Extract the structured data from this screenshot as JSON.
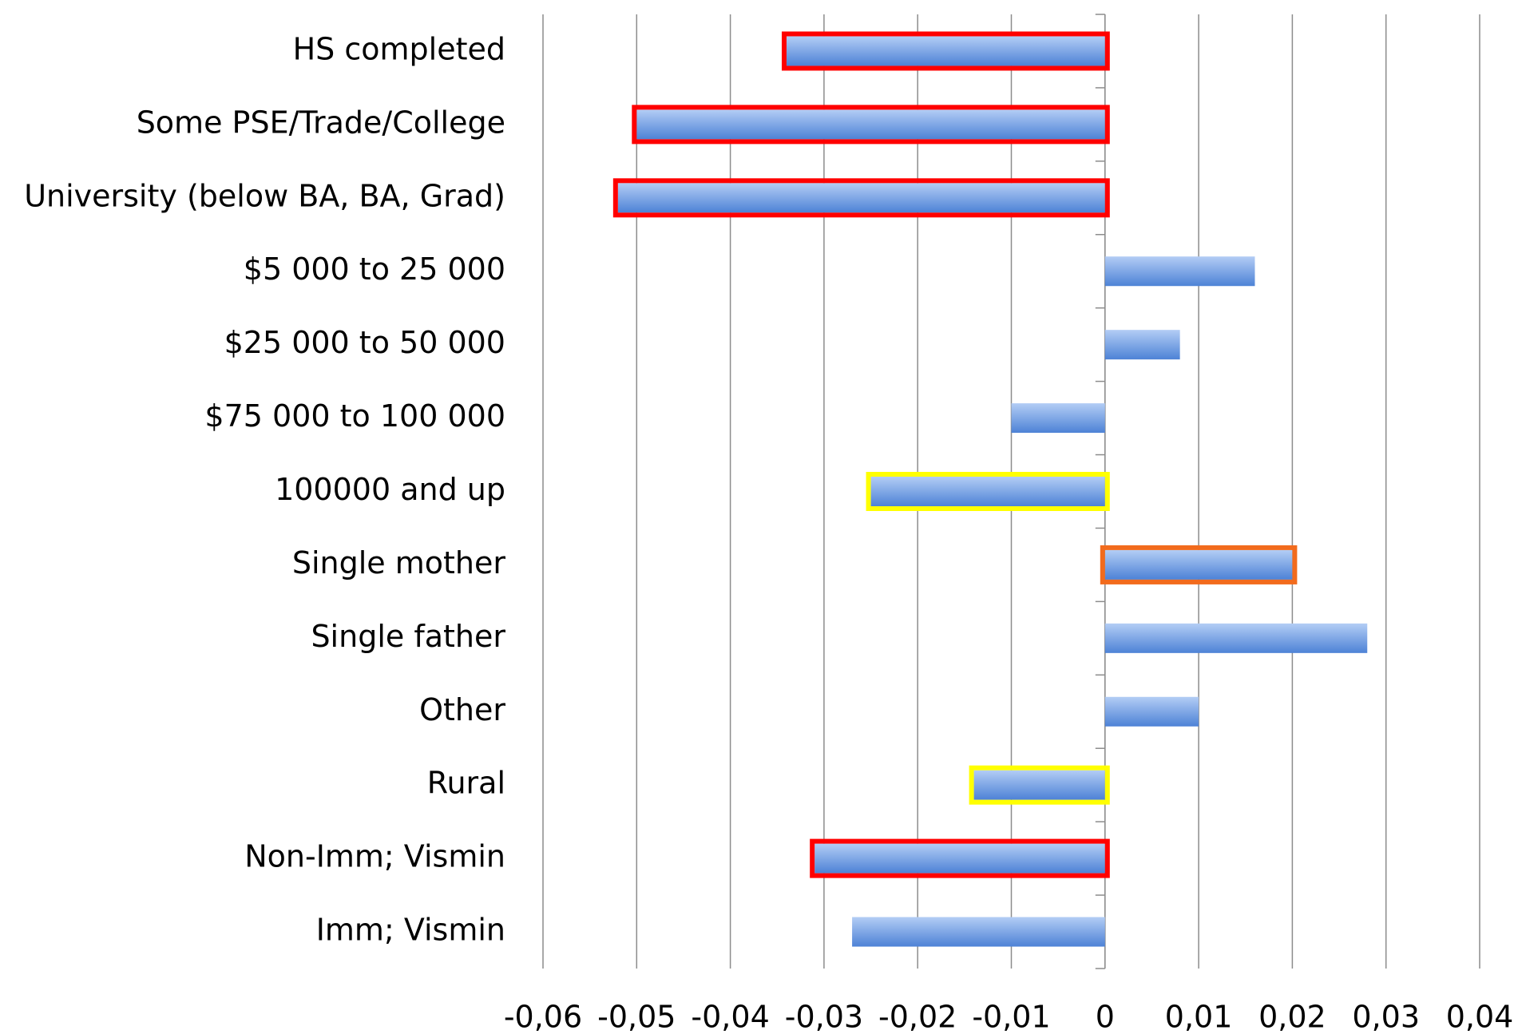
{
  "chart_data": {
    "type": "bar",
    "orientation": "horizontal",
    "categories": [
      "HS completed",
      "Some PSE/Trade/College",
      "University (below BA, BA, Grad)",
      "$5 000 to 25 000",
      "$25 000 to 50 000",
      "$75 000 to 100 000",
      "100000 and up",
      "Single mother",
      "Single father",
      "Other",
      "Rural",
      "Non-Imm; Vismin",
      "Imm; Vismin"
    ],
    "values": [
      -0.034,
      -0.05,
      -0.052,
      0.016,
      0.008,
      -0.01,
      -0.025,
      0.02,
      0.028,
      0.01,
      -0.014,
      -0.031,
      -0.027
    ],
    "color": "#6f9ae3",
    "outline_colors": [
      "#ff0000",
      "#ff0000",
      "#ff0000",
      null,
      null,
      null,
      "#ffff00",
      "#f26b1d",
      null,
      null,
      "#ffff00",
      "#ff0000",
      null
    ],
    "xlim": [
      -0.06,
      0.04
    ],
    "xticks": [
      {
        "value": -0.06,
        "label": "-0,06"
      },
      {
        "value": -0.05,
        "label": "-0,05"
      },
      {
        "value": -0.04,
        "label": "-0,04"
      },
      {
        "value": -0.03,
        "label": "-0,03"
      },
      {
        "value": -0.02,
        "label": "-0,02"
      },
      {
        "value": -0.01,
        "label": "-0,01"
      },
      0,
      {
        "value": 0.01,
        "label": "0,01"
      },
      {
        "value": 0.02,
        "label": "0,02"
      },
      {
        "value": 0.03,
        "label": "0,03"
      },
      {
        "value": 0.04,
        "label": "0,04"
      }
    ],
    "grid": true
  }
}
